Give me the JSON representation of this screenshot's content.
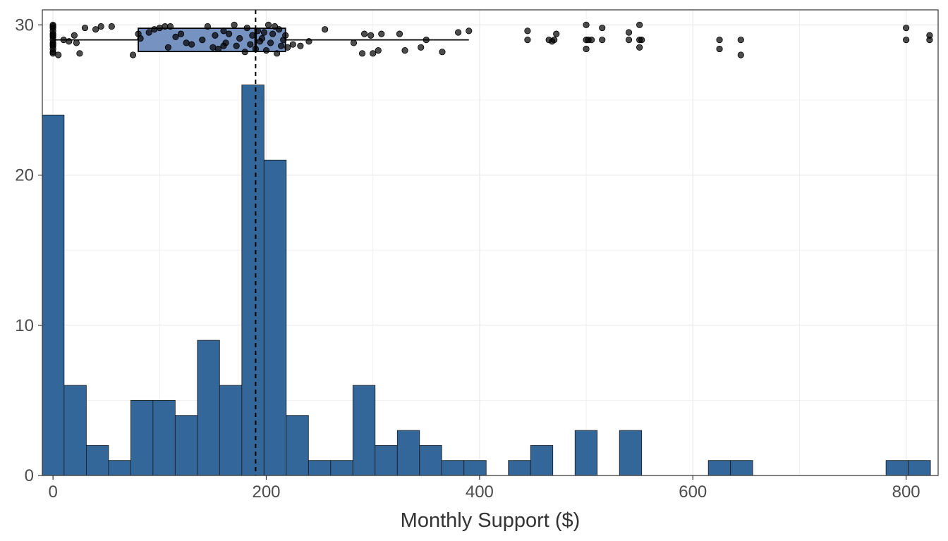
{
  "chart_data": {
    "type": "bar",
    "subtype": "histogram-with-boxplot",
    "xlabel": "Monthly Support ($)",
    "ylabel": "",
    "xlim": [
      -10,
      830
    ],
    "ylim": [
      0,
      31
    ],
    "x_ticks": [
      0,
      200,
      400,
      600,
      800
    ],
    "y_ticks": [
      0,
      10,
      20,
      30
    ],
    "grid": true,
    "bin_width": 20.83,
    "bin_start": -10.4,
    "counts": [
      24,
      6,
      2,
      1,
      5,
      5,
      4,
      9,
      6,
      26,
      21,
      4,
      1,
      1,
      6,
      2,
      3,
      2,
      1,
      1,
      0,
      1,
      2,
      0,
      3,
      0,
      3,
      0,
      0,
      0,
      1,
      1,
      0,
      0,
      0,
      0,
      0,
      0,
      1,
      1
    ],
    "bar_color": "#336699",
    "median_line": 190,
    "boxplot": {
      "y_position": 29,
      "q1": 80,
      "median": 190,
      "q3": 218,
      "whisker_low": 0,
      "whisker_high": 390,
      "fill_color": "#7592c1"
    },
    "points": [
      [
        0,
        28.2
      ],
      [
        0,
        28.4
      ],
      [
        0,
        28.6
      ],
      [
        0,
        28.8
      ],
      [
        0,
        29.0
      ],
      [
        0,
        29.2
      ],
      [
        0,
        29.4
      ],
      [
        0,
        29.6
      ],
      [
        0,
        29.8
      ],
      [
        0,
        30.0
      ],
      [
        0,
        28.1
      ],
      [
        0,
        29.9
      ],
      [
        0,
        29.3
      ],
      [
        0,
        28.7
      ],
      [
        5,
        28.0
      ],
      [
        10,
        29.0
      ],
      [
        15,
        28.9
      ],
      [
        20,
        29.3
      ],
      [
        22,
        28.8
      ],
      [
        25,
        28.1
      ],
      [
        30,
        29.8
      ],
      [
        40,
        29.7
      ],
      [
        45,
        29.9
      ],
      [
        55,
        29.9
      ],
      [
        75,
        28.0
      ],
      [
        80,
        29.4
      ],
      [
        82,
        29.1
      ],
      [
        90,
        29.5
      ],
      [
        95,
        29.7
      ],
      [
        100,
        29.8
      ],
      [
        105,
        29.9
      ],
      [
        108,
        28.5
      ],
      [
        110,
        29.9
      ],
      [
        115,
        29.2
      ],
      [
        120,
        29.4
      ],
      [
        125,
        28.8
      ],
      [
        130,
        28.7
      ],
      [
        140,
        29.0
      ],
      [
        145,
        29.9
      ],
      [
        150,
        28.5
      ],
      [
        152,
        29.3
      ],
      [
        155,
        28.4
      ],
      [
        160,
        29.6
      ],
      [
        160,
        28.6
      ],
      [
        162,
        28.8
      ],
      [
        165,
        29.4
      ],
      [
        170,
        30.0
      ],
      [
        172,
        28.6
      ],
      [
        175,
        29.1
      ],
      [
        180,
        28.2
      ],
      [
        182,
        29.8
      ],
      [
        185,
        28.7
      ],
      [
        187,
        29.3
      ],
      [
        190,
        28.4
      ],
      [
        192,
        29.6
      ],
      [
        194,
        28.9
      ],
      [
        196,
        29.1
      ],
      [
        198,
        29.5
      ],
      [
        200,
        28.3
      ],
      [
        202,
        30.0
      ],
      [
        204,
        28.8
      ],
      [
        206,
        29.4
      ],
      [
        208,
        29.9
      ],
      [
        210,
        28.1
      ],
      [
        212,
        29.7
      ],
      [
        214,
        28.6
      ],
      [
        216,
        29.0
      ],
      [
        218,
        29.3
      ],
      [
        220,
        28.5
      ],
      [
        225,
        28.7
      ],
      [
        232,
        28.6
      ],
      [
        240,
        28.9
      ],
      [
        255,
        29.7
      ],
      [
        282,
        28.8
      ],
      [
        290,
        28.1
      ],
      [
        292,
        29.4
      ],
      [
        298,
        29.3
      ],
      [
        300,
        28.1
      ],
      [
        305,
        28.3
      ],
      [
        308,
        29.4
      ],
      [
        325,
        29.4
      ],
      [
        330,
        28.3
      ],
      [
        345,
        28.5
      ],
      [
        350,
        29.0
      ],
      [
        365,
        28.2
      ],
      [
        380,
        29.5
      ],
      [
        390,
        29.6
      ],
      [
        445,
        29.6
      ],
      [
        445,
        29.0
      ],
      [
        465,
        29.0
      ],
      [
        468,
        28.9
      ],
      [
        470,
        29.0
      ],
      [
        472,
        29.4
      ],
      [
        500,
        30.0
      ],
      [
        500,
        29.0
      ],
      [
        500,
        28.4
      ],
      [
        502,
        29.0
      ],
      [
        505,
        29.0
      ],
      [
        515,
        29.8
      ],
      [
        515,
        29.0
      ],
      [
        540,
        29.5
      ],
      [
        540,
        29.0
      ],
      [
        550,
        30.0
      ],
      [
        550,
        29.0
      ],
      [
        550,
        28.5
      ],
      [
        552,
        29.0
      ],
      [
        625,
        29.0
      ],
      [
        625,
        28.4
      ],
      [
        645,
        29.0
      ],
      [
        645,
        28.0
      ],
      [
        800,
        29.8
      ],
      [
        800,
        29.0
      ],
      [
        822,
        29.3
      ],
      [
        822,
        29.0
      ]
    ]
  }
}
